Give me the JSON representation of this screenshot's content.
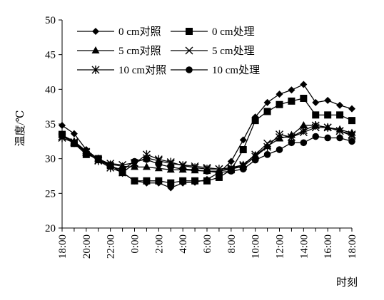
{
  "chart_data": {
    "type": "line",
    "xlabel": "时刻",
    "ylabel": "温度/℃",
    "ylim": [
      20,
      50
    ],
    "yticks": [
      20,
      25,
      30,
      35,
      40,
      45,
      50
    ],
    "xticks": [
      "18:00",
      "20:00",
      "22:00",
      "0:00",
      "2:00",
      "4:00",
      "6:00",
      "8:00",
      "10:00",
      "12:00",
      "14:00",
      "16:00",
      "18:00"
    ],
    "x": [
      "18:00",
      "19:00",
      "20:00",
      "21:00",
      "22:00",
      "23:00",
      "0:00",
      "1:00",
      "2:00",
      "3:00",
      "4:00",
      "5:00",
      "6:00",
      "7:00",
      "8:00",
      "9:00",
      "10:00",
      "11:00",
      "12:00",
      "13:00",
      "14:00",
      "15:00",
      "16:00",
      "17:00",
      "18:00"
    ],
    "grid": false,
    "legend_position": "top",
    "series": [
      {
        "name": "0 cm对照",
        "marker": "diamond",
        "color": "#000000",
        "values": [
          34.8,
          33.6,
          31.3,
          29.9,
          29.1,
          28.0,
          26.8,
          26.5,
          26.5,
          25.8,
          26.5,
          26.6,
          27.0,
          28.0,
          29.6,
          32.7,
          36.0,
          38.1,
          39.3,
          39.9,
          40.7,
          38.1,
          38.4,
          37.7,
          37.2
        ]
      },
      {
        "name": "0 cm处理",
        "marker": "square",
        "color": "#000000",
        "values": [
          33.5,
          32.2,
          30.6,
          30.0,
          29.0,
          28.0,
          26.8,
          26.8,
          26.8,
          26.5,
          26.8,
          26.8,
          26.8,
          27.3,
          28.4,
          31.3,
          35.5,
          36.8,
          37.8,
          38.3,
          38.7,
          36.3,
          36.3,
          36.3,
          35.5
        ]
      },
      {
        "name": "5 cm对照",
        "marker": "triangle",
        "color": "#000000",
        "values": [
          33.4,
          32.5,
          31.1,
          30.0,
          29.2,
          28.9,
          28.8,
          28.8,
          28.6,
          28.4,
          28.4,
          28.3,
          28.2,
          28.2,
          28.5,
          29.1,
          30.5,
          31.8,
          32.9,
          33.4,
          34.8,
          34.8,
          34.5,
          34.2,
          33.7
        ]
      },
      {
        "name": "5 cm处理",
        "marker": "x",
        "color": "#000000",
        "values": [
          33.2,
          32.4,
          31.0,
          29.8,
          29.3,
          29.1,
          29.4,
          30.1,
          29.7,
          29.3,
          29.1,
          28.9,
          28.7,
          28.5,
          28.7,
          29.1,
          30.6,
          32.2,
          33.1,
          33.1,
          33.8,
          34.5,
          34.5,
          34.0,
          33.5
        ]
      },
      {
        "name": "10 cm对照",
        "marker": "asterisk",
        "color": "#000000",
        "values": [
          33.0,
          32.3,
          30.9,
          29.7,
          28.7,
          28.0,
          29.3,
          30.6,
          29.9,
          29.5,
          29.0,
          28.7,
          28.5,
          28.5,
          28.5,
          28.9,
          30.3,
          31.7,
          33.5,
          33.1,
          34.1,
          34.8,
          34.5,
          34.0,
          33.3
        ]
      },
      {
        "name": "10 cm处理",
        "marker": "circle",
        "color": "#000000",
        "values": [
          33.3,
          32.3,
          30.8,
          29.8,
          28.9,
          28.4,
          29.6,
          29.9,
          29.2,
          28.8,
          28.5,
          28.4,
          28.2,
          28.0,
          28.2,
          28.5,
          29.8,
          30.6,
          31.3,
          32.3,
          32.3,
          33.2,
          33.0,
          33.0,
          32.5
        ]
      }
    ]
  }
}
